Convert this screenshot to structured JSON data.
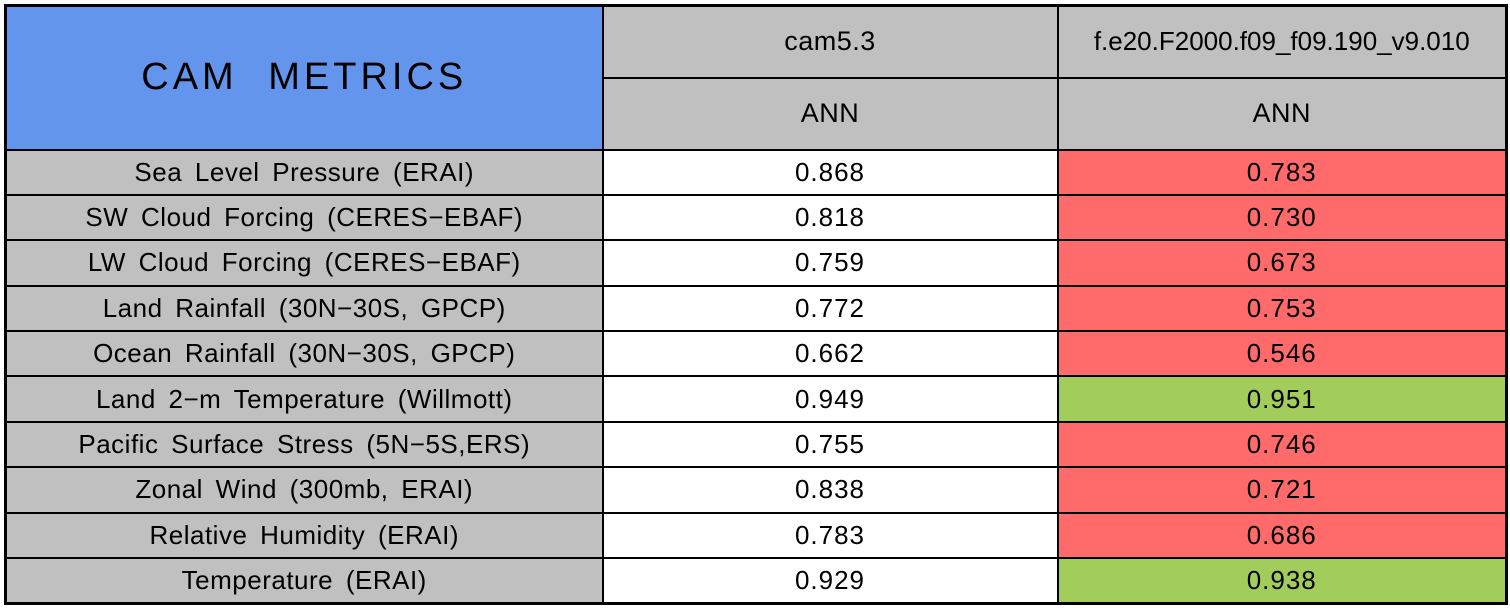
{
  "chart_data": {
    "type": "table",
    "title": "CAM METRICS",
    "column_groups": [
      {
        "model": "cam5.3",
        "season": "ANN"
      },
      {
        "model": "f.e20.F2000.f09_f09.190_v9.010",
        "season": "ANN"
      }
    ],
    "rows": [
      {
        "metric": "Sea Level Pressure (ERAI)",
        "baseline": "0.868",
        "test": "0.783",
        "test_status": "worse"
      },
      {
        "metric": "SW Cloud Forcing (CERES−EBAF)",
        "baseline": "0.818",
        "test": "0.730",
        "test_status": "worse"
      },
      {
        "metric": "LW Cloud Forcing (CERES−EBAF)",
        "baseline": "0.759",
        "test": "0.673",
        "test_status": "worse"
      },
      {
        "metric": "Land Rainfall (30N−30S, GPCP)",
        "baseline": "0.772",
        "test": "0.753",
        "test_status": "worse"
      },
      {
        "metric": "Ocean Rainfall (30N−30S, GPCP)",
        "baseline": "0.662",
        "test": "0.546",
        "test_status": "worse"
      },
      {
        "metric": "Land 2−m Temperature (Willmott)",
        "baseline": "0.949",
        "test": "0.951",
        "test_status": "better"
      },
      {
        "metric": "Pacific Surface Stress (5N−5S,ERS)",
        "baseline": "0.755",
        "test": "0.746",
        "test_status": "worse"
      },
      {
        "metric": "Zonal Wind (300mb, ERAI)",
        "baseline": "0.838",
        "test": "0.721",
        "test_status": "worse"
      },
      {
        "metric": "Relative Humidity (ERAI)",
        "baseline": "0.783",
        "test": "0.686",
        "test_status": "worse"
      },
      {
        "metric": "Temperature (ERAI)",
        "baseline": "0.929",
        "test": "0.938",
        "test_status": "better"
      }
    ]
  },
  "colors": {
    "title_bg": "#6495ED",
    "header_bg": "#C0C0C0",
    "baseline_bg": "#FFFFFF",
    "worse_bg": "#FF6A6A",
    "better_bg": "#A2CD5A",
    "border": "#000000",
    "text": "#000000"
  }
}
